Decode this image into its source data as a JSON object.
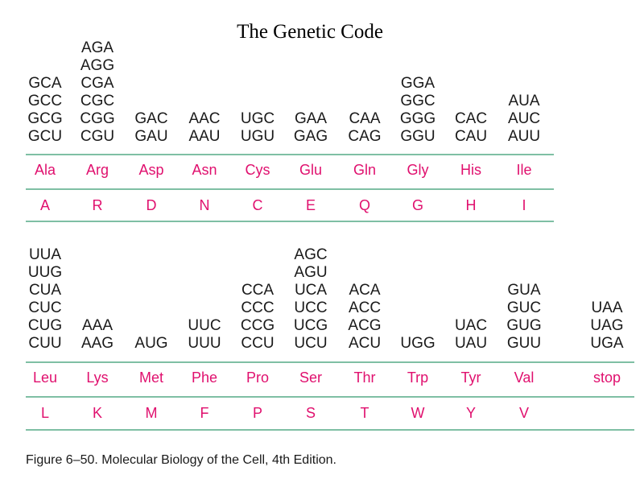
{
  "title": "The Genetic Code",
  "top": [
    {
      "codons": [
        "GCA",
        "GCC",
        "GCG",
        "GCU"
      ],
      "aa3": "Ala",
      "aa1": "A"
    },
    {
      "codons": [
        "AGA",
        "AGG",
        "CGA",
        "CGC",
        "CGG",
        "CGU"
      ],
      "aa3": "Arg",
      "aa1": "R"
    },
    {
      "codons": [
        "GAC",
        "GAU"
      ],
      "aa3": "Asp",
      "aa1": "D"
    },
    {
      "codons": [
        "AAC",
        "AAU"
      ],
      "aa3": "Asn",
      "aa1": "N"
    },
    {
      "codons": [
        "UGC",
        "UGU"
      ],
      "aa3": "Cys",
      "aa1": "C"
    },
    {
      "codons": [
        "GAA",
        "GAG"
      ],
      "aa3": "Glu",
      "aa1": "E"
    },
    {
      "codons": [
        "CAA",
        "CAG"
      ],
      "aa3": "Gln",
      "aa1": "Q"
    },
    {
      "codons": [
        "GGA",
        "GGC",
        "GGG",
        "GGU"
      ],
      "aa3": "Gly",
      "aa1": "G"
    },
    {
      "codons": [
        "CAC",
        "CAU"
      ],
      "aa3": "His",
      "aa1": "H"
    },
    {
      "codons": [
        "AUA",
        "AUC",
        "AUU"
      ],
      "aa3": "Ile",
      "aa1": "I"
    }
  ],
  "bottom": [
    {
      "codons": [
        "UUA",
        "UUG",
        "CUA",
        "CUC",
        "CUG",
        "CUU"
      ],
      "aa3": "Leu",
      "aa1": "L"
    },
    {
      "codons": [
        "AAA",
        "AAG"
      ],
      "aa3": "Lys",
      "aa1": "K"
    },
    {
      "codons": [
        "AUG"
      ],
      "aa3": "Met",
      "aa1": "M"
    },
    {
      "codons": [
        "UUC",
        "UUU"
      ],
      "aa3": "Phe",
      "aa1": "F"
    },
    {
      "codons": [
        "CCA",
        "CCC",
        "CCG",
        "CCU"
      ],
      "aa3": "Pro",
      "aa1": "P"
    },
    {
      "codons": [
        "AGC",
        "AGU",
        "UCA",
        "UCC",
        "UCG",
        "UCU"
      ],
      "aa3": "Ser",
      "aa1": "S"
    },
    {
      "codons": [
        "ACA",
        "ACC",
        "ACG",
        "ACU"
      ],
      "aa3": "Thr",
      "aa1": "T"
    },
    {
      "codons": [
        "UGG"
      ],
      "aa3": "Trp",
      "aa1": "W"
    },
    {
      "codons": [
        "UAC",
        "UAU"
      ],
      "aa3": "Tyr",
      "aa1": "Y"
    },
    {
      "codons": [
        "GUA",
        "GUC",
        "GUG",
        "GUU"
      ],
      "aa3": "Val",
      "aa1": "V"
    },
    {
      "codons": [
        "UAA",
        "UAG",
        "UGA"
      ],
      "aa3": "stop",
      "aa1": ""
    }
  ],
  "caption": "Figure 6–50. Molecular Biology of the Cell, 4th Edition.",
  "colors": {
    "amino_acid": "#e0106e",
    "rule": "#7fbfa4",
    "text": "#1a1a1a"
  }
}
